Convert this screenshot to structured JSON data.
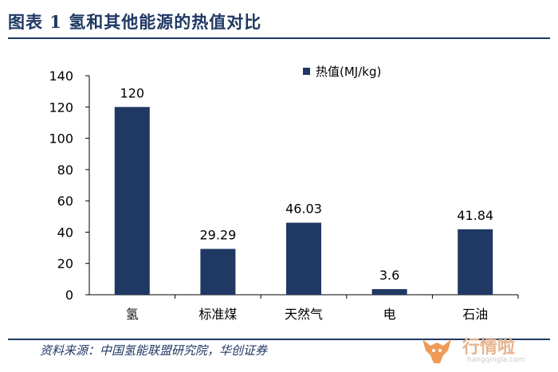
{
  "header": {
    "title": "图表 1 氢和其他能源的热值对比"
  },
  "footer": {
    "source": "资料来源：中国氢能联盟研究院，华创证券"
  },
  "watermark": {
    "name": "行情啦",
    "url": "hangqingla.com"
  },
  "colors": {
    "bar": "#1f3864",
    "rule": "#1f3864",
    "title": "#1f3864",
    "axis": "#000000",
    "watermark": "#e8b48e"
  },
  "chart_data": {
    "type": "bar",
    "categories": [
      "氢",
      "标准煤",
      "天然气",
      "电",
      "石油"
    ],
    "series": [
      {
        "name": "热值(MJ/kg)",
        "values": [
          120,
          29.29,
          46.03,
          3.6,
          41.84
        ]
      }
    ],
    "value_labels": [
      "120",
      "29.29",
      "46.03",
      "3.6",
      "41.84"
    ],
    "y_ticks": [
      "0",
      "20",
      "40",
      "60",
      "80",
      "100",
      "120",
      "140"
    ],
    "ylim": [
      0,
      140
    ],
    "grid": false,
    "legend": "top-right"
  }
}
